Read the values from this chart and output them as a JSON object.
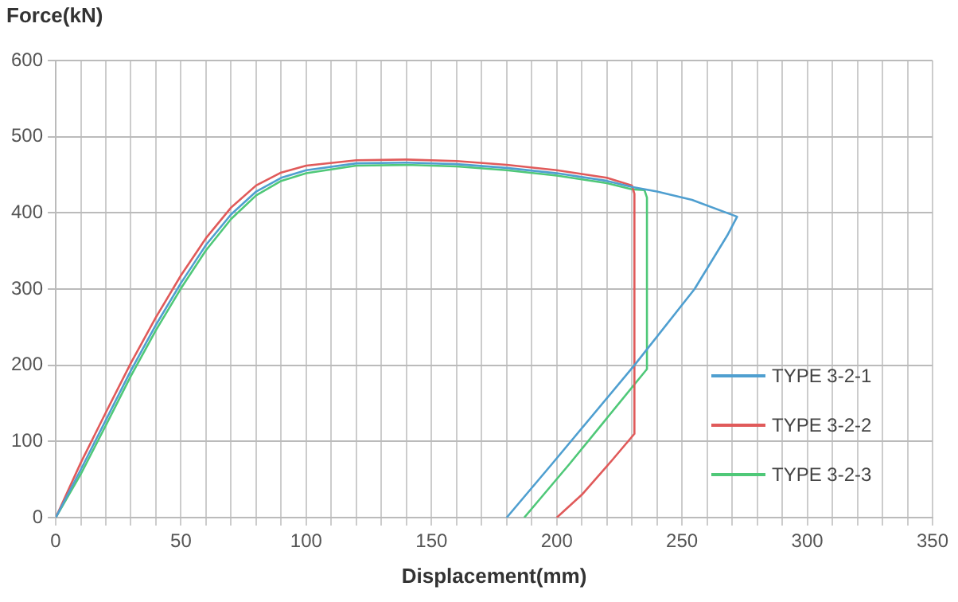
{
  "chart_data": {
    "type": "line",
    "xlabel": "Displacement(mm)",
    "ylabel": "Force(kN)",
    "xlim": [
      0,
      350
    ],
    "xticks": [
      0,
      {
        "value": 10,
        "label": null
      },
      {
        "value": 20,
        "label": null
      },
      {
        "value": 30,
        "label": null
      },
      {
        "value": 40,
        "label": null
      },
      50,
      {
        "value": 60,
        "label": null
      },
      {
        "value": 70,
        "label": null
      },
      {
        "value": 80,
        "label": null
      },
      {
        "value": 90,
        "label": null
      },
      100,
      {
        "value": 110,
        "label": null
      },
      {
        "value": 120,
        "label": null
      },
      {
        "value": 130,
        "label": null
      },
      {
        "value": 140,
        "label": null
      },
      150,
      {
        "value": 160,
        "label": null
      },
      {
        "value": 170,
        "label": null
      },
      {
        "value": 180,
        "label": null
      },
      {
        "value": 190,
        "label": null
      },
      200,
      {
        "value": 210,
        "label": null
      },
      {
        "value": 220,
        "label": null
      },
      {
        "value": 230,
        "label": null
      },
      {
        "value": 240,
        "label": null
      },
      250,
      {
        "value": 260,
        "label": null
      },
      {
        "value": 270,
        "label": null
      },
      {
        "value": 280,
        "label": null
      },
      {
        "value": 290,
        "label": null
      },
      300,
      {
        "value": 310,
        "label": null
      },
      {
        "value": 320,
        "label": null
      },
      {
        "value": 330,
        "label": null
      },
      {
        "value": 340,
        "label": null
      },
      350
    ],
    "ylim": [
      0,
      600
    ],
    "yticks": [
      0,
      100,
      200,
      300,
      400,
      500,
      600
    ],
    "grid": true,
    "legend": "bottom right",
    "marker": "none",
    "line_style": "solid",
    "series": [
      {
        "name": "TYPE 3-2-1",
        "color": "#4f9fd0",
        "x": [
          0,
          10,
          20,
          30,
          40,
          50,
          60,
          70,
          80,
          90,
          100,
          120,
          140,
          160,
          180,
          200,
          220,
          230,
          240,
          254,
          272,
          268,
          255,
          231,
          198,
          189,
          180
        ],
        "values": [
          0,
          63,
          128,
          193,
          253,
          308,
          358,
          398,
          428,
          446,
          456,
          465,
          466,
          464,
          459,
          452,
          442,
          434,
          428,
          417,
          395,
          370,
          300,
          200,
          70,
          35,
          0
        ]
      },
      {
        "name": "TYPE 3-2-2",
        "color": "#e05a5a",
        "x": [
          0,
          10,
          20,
          30,
          40,
          50,
          60,
          70,
          80,
          90,
          100,
          120,
          140,
          160,
          180,
          200,
          220,
          230,
          231,
          231,
          222,
          210,
          200
        ],
        "values": [
          0,
          72,
          138,
          203,
          263,
          318,
          367,
          407,
          436,
          453,
          462,
          469,
          470,
          468,
          463,
          456,
          446,
          436,
          425,
          110,
          75,
          30,
          0
        ]
      },
      {
        "name": "TYPE 3-2-3",
        "color": "#4fc878",
        "x": [
          0,
          10,
          20,
          30,
          40,
          50,
          60,
          70,
          80,
          90,
          100,
          120,
          140,
          160,
          180,
          200,
          220,
          230,
          235,
          236,
          236,
          205,
          196,
          187
        ],
        "values": [
          0,
          57,
          121,
          186,
          246,
          301,
          351,
          392,
          423,
          442,
          452,
          462,
          463,
          461,
          456,
          449,
          439,
          431,
          430,
          420,
          195,
          70,
          35,
          0
        ]
      }
    ]
  }
}
